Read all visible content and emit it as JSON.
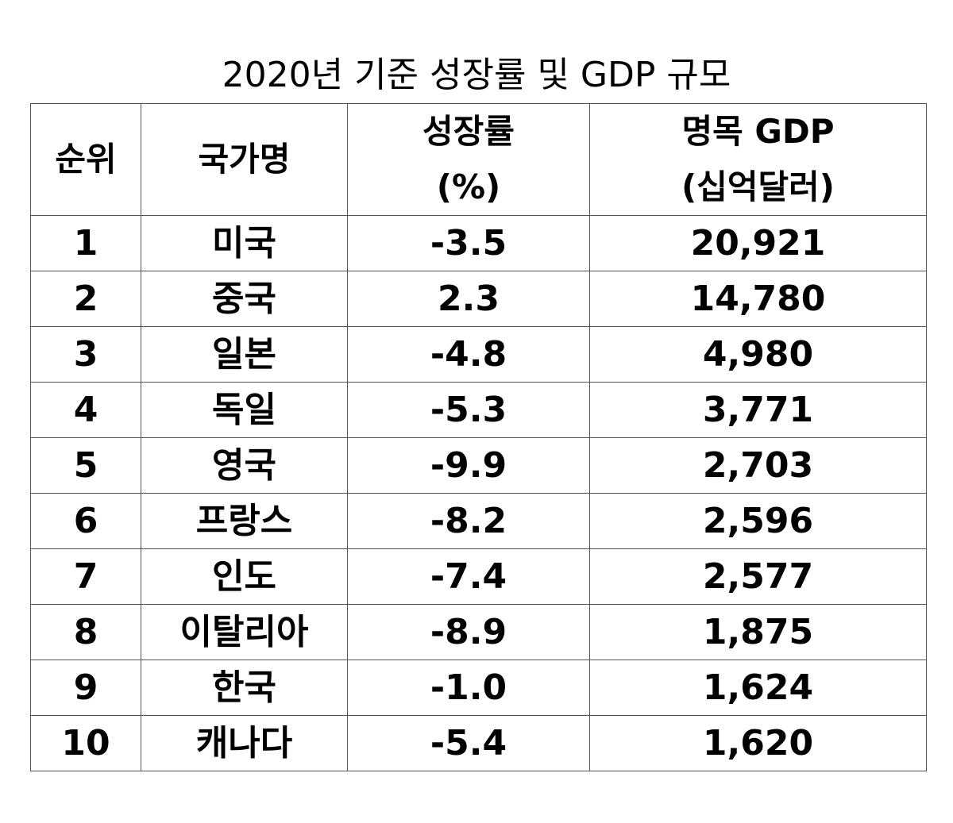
{
  "title": "2020년 기준 성장률 및 GDP 규모",
  "table": {
    "headers": {
      "rank": "순위",
      "country": "국가명",
      "growth_line1": "성장률",
      "growth_line2": "(%)",
      "gdp_line1": "명목 GDP",
      "gdp_line2": "(십억달러)"
    },
    "rows": [
      {
        "rank": "1",
        "country": "미국",
        "growth": "-3.5",
        "gdp": "20,921"
      },
      {
        "rank": "2",
        "country": "중국",
        "growth": "2.3",
        "gdp": "14,780"
      },
      {
        "rank": "3",
        "country": "일본",
        "growth": "-4.8",
        "gdp": "4,980"
      },
      {
        "rank": "4",
        "country": "독일",
        "growth": "-5.3",
        "gdp": "3,771"
      },
      {
        "rank": "5",
        "country": "영국",
        "growth": "-9.9",
        "gdp": "2,703"
      },
      {
        "rank": "6",
        "country": "프랑스",
        "growth": "-8.2",
        "gdp": "2,596"
      },
      {
        "rank": "7",
        "country": "인도",
        "growth": "-7.4",
        "gdp": "2,577"
      },
      {
        "rank": "8",
        "country": "이탈리아",
        "growth": "-8.9",
        "gdp": "1,875"
      },
      {
        "rank": "9",
        "country": "한국",
        "growth": "-1.0",
        "gdp": "1,624"
      },
      {
        "rank": "10",
        "country": "캐나다",
        "growth": "-5.4",
        "gdp": "1,620"
      }
    ]
  },
  "colors": {
    "text": "#000000",
    "border": "#555555",
    "background": "#ffffff"
  }
}
